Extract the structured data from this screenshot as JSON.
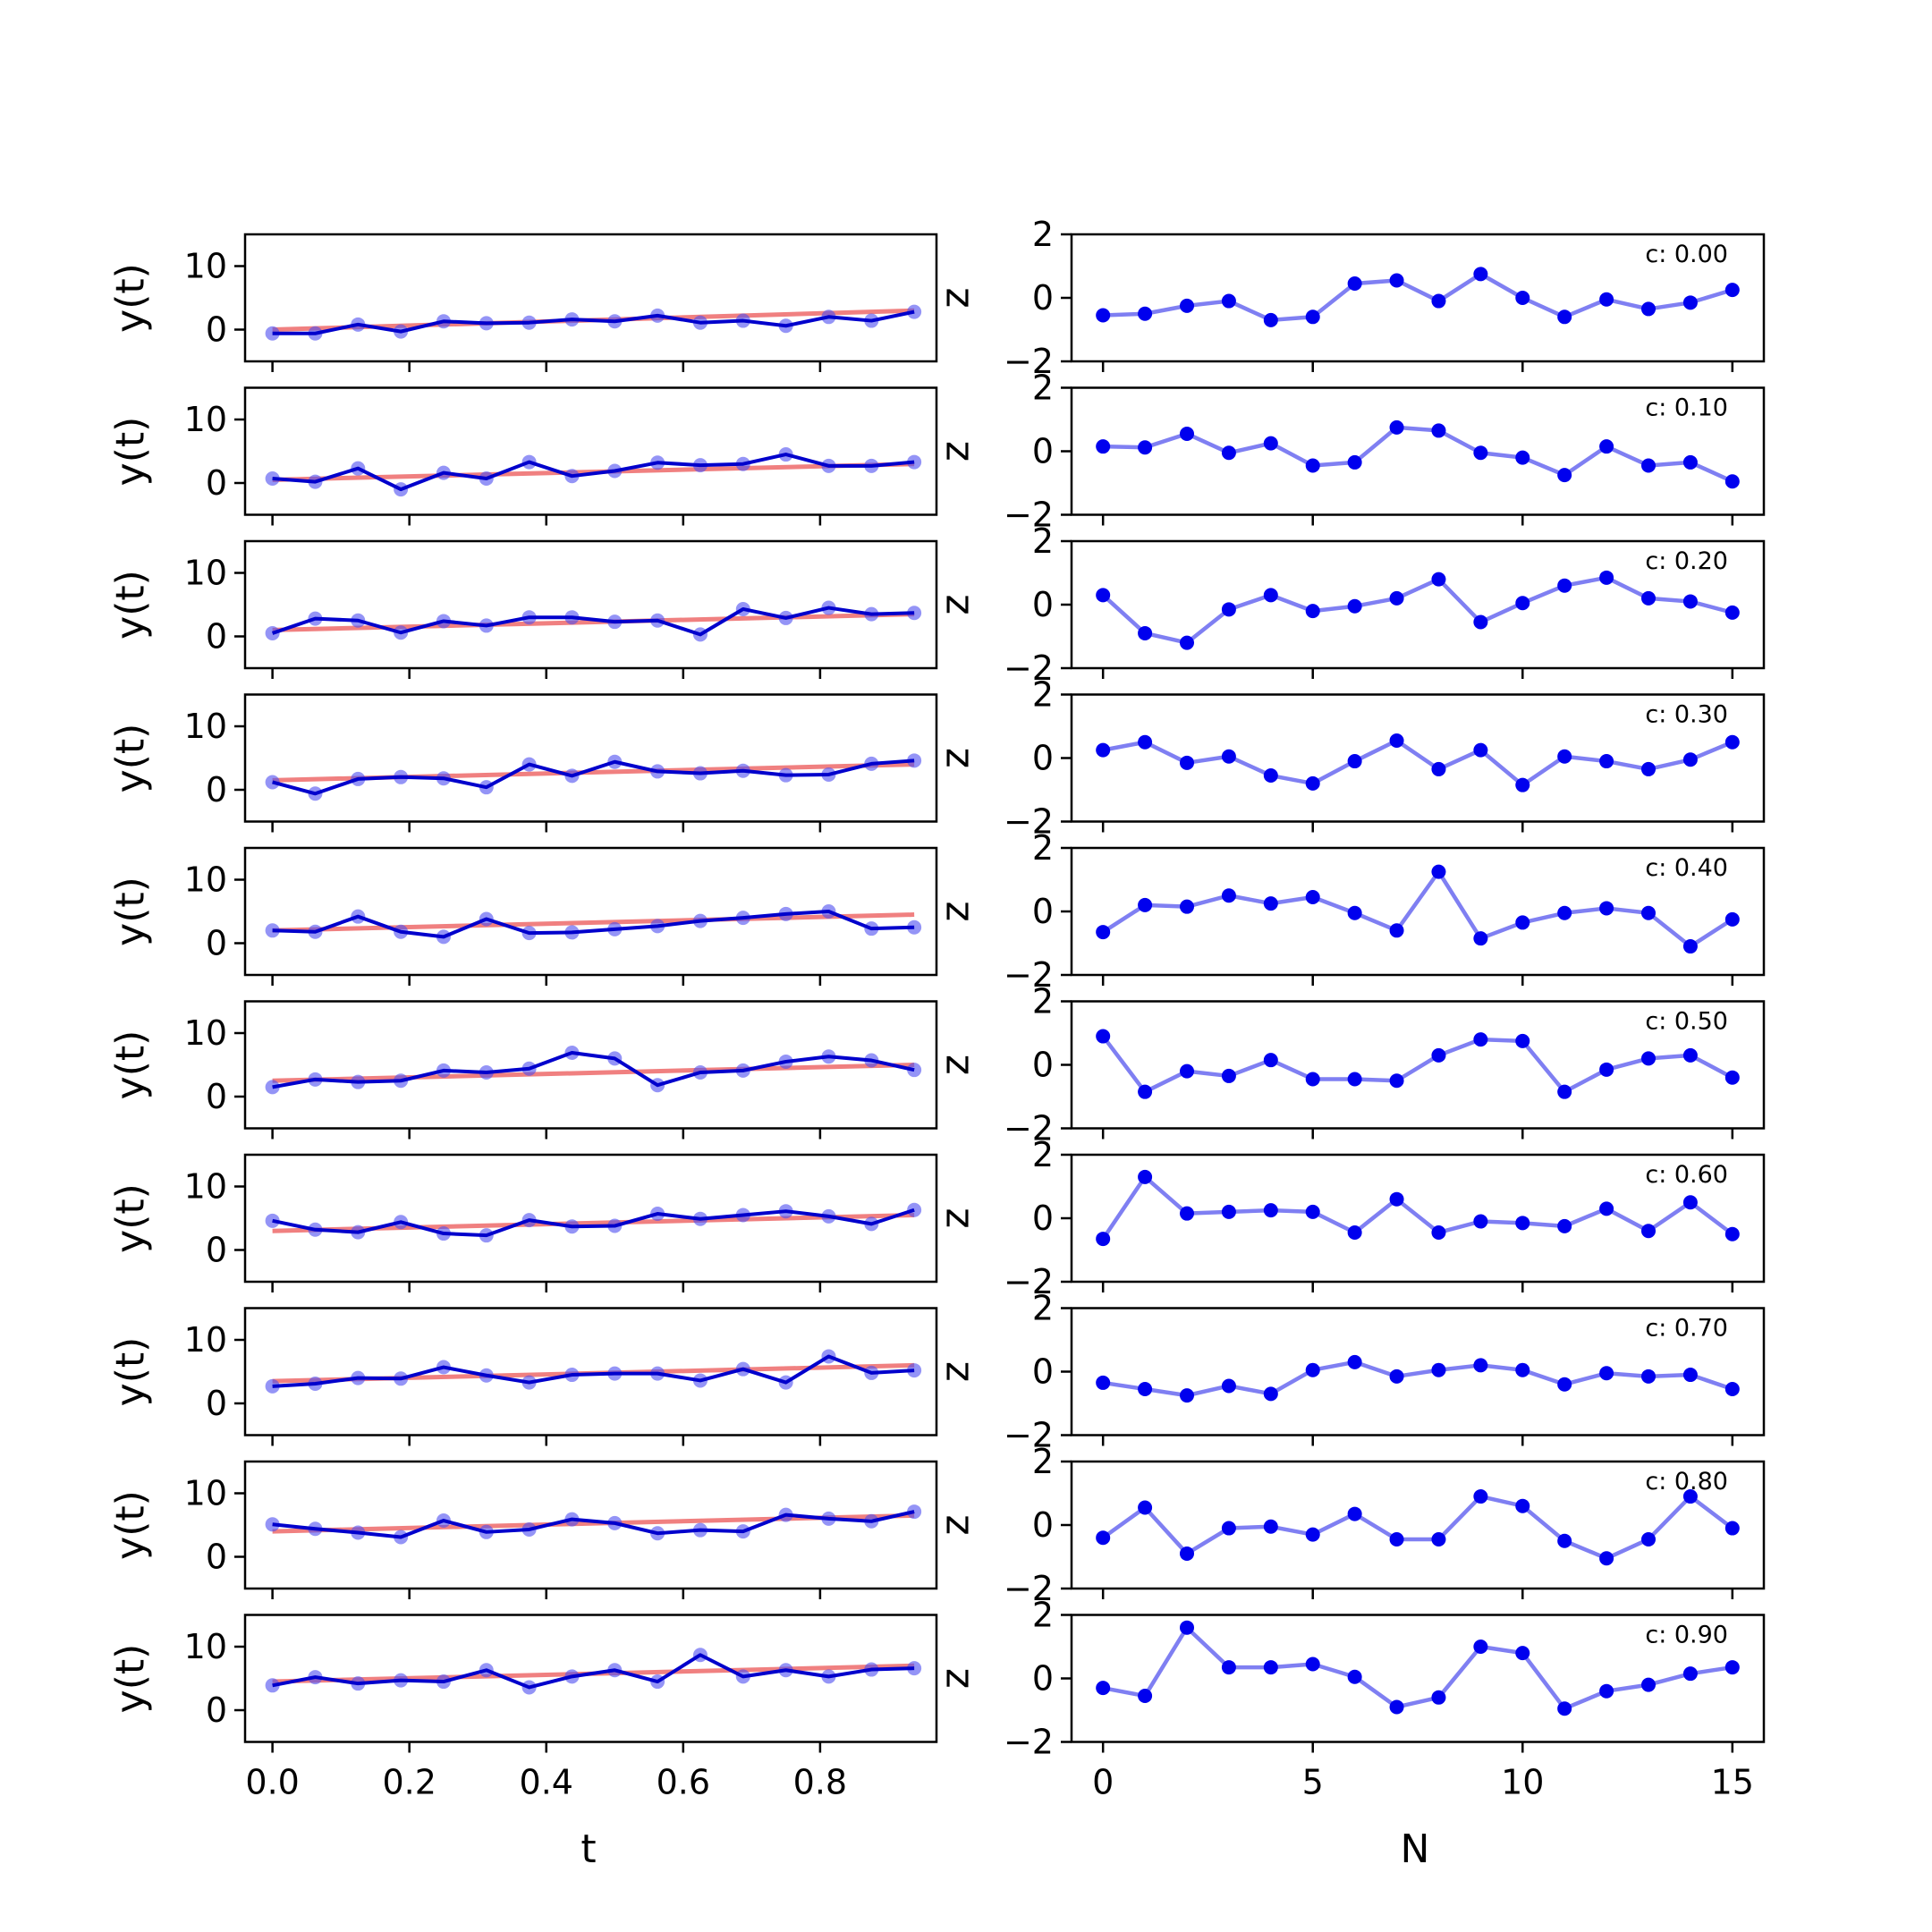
{
  "chart_data": [
    {
      "type": "line",
      "panel": "left",
      "xlabel": "t",
      "ylabel": "y(t)",
      "hidden_label_fragment": "0",
      "xlim": [
        -0.04,
        0.97
      ],
      "ylim": [
        -5,
        15
      ],
      "xticks": [
        0.0,
        0.2,
        0.4,
        0.6,
        0.8
      ],
      "xtick_labels": [
        "0.0",
        "0.2",
        "0.4",
        "0.6",
        "0.8"
      ],
      "yticks": [
        0,
        10
      ],
      "ytick_labels": [
        "0",
        "10"
      ],
      "x": [
        0.0,
        0.0625,
        0.125,
        0.1875,
        0.25,
        0.3125,
        0.375,
        0.4375,
        0.5,
        0.5625,
        0.625,
        0.6875,
        0.75,
        0.8125,
        0.875,
        0.9375
      ],
      "colors": {
        "data": "#0000cc",
        "markers": "#4d4df0",
        "fit": "#f08080"
      },
      "rows": [
        {
          "c": 0.0,
          "trend": [
            0.0,
            3.0
          ],
          "y": [
            -0.6,
            -0.6,
            0.8,
            -0.3,
            1.3,
            1.0,
            1.1,
            1.6,
            1.3,
            2.2,
            1.1,
            1.4,
            0.6,
            2.0,
            1.4,
            2.8
          ]
        },
        {
          "c": 0.1,
          "trend": [
            0.5,
            3.0
          ],
          "y": [
            0.7,
            0.2,
            2.3,
            -1.0,
            1.6,
            0.7,
            3.3,
            1.1,
            1.9,
            3.2,
            2.8,
            3.0,
            4.5,
            2.7,
            2.7,
            3.3
          ]
        },
        {
          "c": 0.2,
          "trend": [
            1.0,
            3.5
          ],
          "y": [
            0.5,
            2.8,
            2.5,
            0.6,
            2.4,
            1.7,
            3.0,
            3.0,
            2.3,
            2.5,
            0.3,
            4.3,
            2.9,
            4.5,
            3.5,
            3.7
          ]
        },
        {
          "c": 0.3,
          "trend": [
            1.5,
            4.0
          ],
          "y": [
            1.2,
            -0.6,
            1.7,
            2.0,
            1.8,
            0.4,
            4.0,
            2.2,
            4.4,
            2.9,
            2.6,
            3.0,
            2.3,
            2.4,
            4.1,
            4.6
          ]
        },
        {
          "c": 0.4,
          "trend": [
            2.0,
            4.5
          ],
          "y": [
            2.0,
            1.8,
            4.2,
            1.8,
            1.0,
            3.8,
            1.6,
            1.7,
            2.2,
            2.7,
            3.5,
            4.0,
            4.6,
            5.0,
            2.3,
            2.5
          ]
        },
        {
          "c": 0.5,
          "trend": [
            2.5,
            5.0
          ],
          "y": [
            1.5,
            2.7,
            2.3,
            2.5,
            4.1,
            3.8,
            4.4,
            6.9,
            6.0,
            1.8,
            3.8,
            4.1,
            5.5,
            6.3,
            5.7,
            4.2
          ]
        },
        {
          "c": 0.6,
          "trend": [
            3.0,
            5.5
          ],
          "y": [
            4.6,
            3.2,
            2.8,
            4.4,
            2.6,
            2.3,
            4.7,
            3.7,
            3.8,
            5.7,
            4.9,
            5.5,
            6.1,
            5.3,
            4.1,
            6.3
          ]
        },
        {
          "c": 0.7,
          "trend": [
            3.5,
            6.0
          ],
          "y": [
            2.7,
            3.1,
            4.0,
            3.9,
            5.7,
            4.4,
            3.3,
            4.5,
            4.7,
            4.7,
            3.6,
            5.4,
            3.3,
            7.4,
            4.8,
            5.2
          ]
        },
        {
          "c": 0.8,
          "trend": [
            4.0,
            6.5
          ],
          "y": [
            5.1,
            4.4,
            3.8,
            3.1,
            5.7,
            3.9,
            4.3,
            5.9,
            5.3,
            3.7,
            4.2,
            4.0,
            6.6,
            6.0,
            5.6,
            7.1
          ]
        },
        {
          "c": 0.9,
          "trend": [
            4.5,
            7.0
          ],
          "y": [
            3.9,
            5.2,
            4.2,
            4.7,
            4.5,
            6.3,
            3.6,
            5.3,
            6.3,
            4.5,
            8.7,
            5.3,
            6.3,
            5.3,
            6.4,
            6.6
          ]
        }
      ]
    },
    {
      "type": "line",
      "panel": "right",
      "xlabel": "N",
      "ylabel": "z",
      "annotation_prefix": "c: ",
      "xlim": [
        -0.75,
        15.75
      ],
      "ylim": [
        -2,
        2
      ],
      "xticks": [
        0,
        5,
        10,
        15
      ],
      "xtick_labels": [
        "0",
        "5",
        "10",
        "15"
      ],
      "yticks": [
        -2,
        0,
        2
      ],
      "ytick_labels": [
        "−2",
        "0",
        "2"
      ],
      "x": [
        0,
        1,
        2,
        3,
        4,
        5,
        6,
        7,
        8,
        9,
        10,
        11,
        12,
        13,
        14,
        15
      ],
      "colors": {
        "line": "#7f7ff2",
        "markers": "#0000ee"
      },
      "rows": [
        {
          "annotation": "0.00",
          "y": [
            -0.55,
            -0.5,
            -0.25,
            -0.1,
            -0.7,
            -0.6,
            0.45,
            0.55,
            -0.1,
            0.75,
            0.0,
            -0.6,
            -0.05,
            -0.35,
            -0.15,
            0.25
          ]
        },
        {
          "annotation": "0.10",
          "y": [
            0.15,
            0.12,
            0.55,
            -0.05,
            0.25,
            -0.45,
            -0.35,
            0.75,
            0.65,
            -0.05,
            -0.2,
            -0.75,
            0.15,
            -0.45,
            -0.35,
            -0.95
          ]
        },
        {
          "annotation": "0.20",
          "y": [
            0.3,
            -0.9,
            -1.2,
            -0.15,
            0.3,
            -0.2,
            -0.05,
            0.2,
            0.8,
            -0.55,
            0.05,
            0.6,
            0.85,
            0.2,
            0.1,
            -0.25
          ]
        },
        {
          "annotation": "0.30",
          "y": [
            0.25,
            0.5,
            -0.15,
            0.05,
            -0.55,
            -0.8,
            -0.1,
            0.55,
            -0.35,
            0.25,
            -0.85,
            0.05,
            -0.1,
            -0.35,
            -0.05,
            0.5
          ]
        },
        {
          "annotation": "0.40",
          "y": [
            -0.65,
            0.2,
            0.15,
            0.5,
            0.25,
            0.45,
            -0.05,
            -0.6,
            1.25,
            -0.85,
            -0.35,
            -0.05,
            0.1,
            -0.05,
            -1.1,
            -0.25
          ]
        },
        {
          "annotation": "0.50",
          "y": [
            0.9,
            -0.85,
            -0.2,
            -0.35,
            0.15,
            -0.45,
            -0.45,
            -0.5,
            0.3,
            0.8,
            0.75,
            -0.85,
            -0.15,
            0.2,
            0.3,
            -0.4
          ]
        },
        {
          "annotation": "0.60",
          "y": [
            -0.65,
            1.3,
            0.15,
            0.2,
            0.25,
            0.2,
            -0.45,
            0.6,
            -0.45,
            -0.1,
            -0.15,
            -0.25,
            0.3,
            -0.4,
            0.5,
            -0.5
          ]
        },
        {
          "annotation": "0.70",
          "y": [
            -0.35,
            -0.55,
            -0.75,
            -0.45,
            -0.7,
            0.05,
            0.3,
            -0.15,
            0.05,
            0.2,
            0.05,
            -0.4,
            -0.05,
            -0.15,
            -0.1,
            -0.55
          ]
        },
        {
          "annotation": "0.80",
          "y": [
            -0.4,
            0.55,
            -0.9,
            -0.1,
            -0.05,
            -0.3,
            0.35,
            -0.45,
            -0.45,
            0.9,
            0.6,
            -0.5,
            -1.05,
            -0.45,
            0.9,
            -0.1
          ]
        },
        {
          "annotation": "0.90",
          "y": [
            -0.3,
            -0.55,
            1.6,
            0.35,
            0.35,
            0.45,
            0.05,
            -0.9,
            -0.6,
            1.0,
            0.8,
            -0.95,
            -0.4,
            -0.2,
            0.15,
            0.35
          ]
        }
      ]
    }
  ]
}
